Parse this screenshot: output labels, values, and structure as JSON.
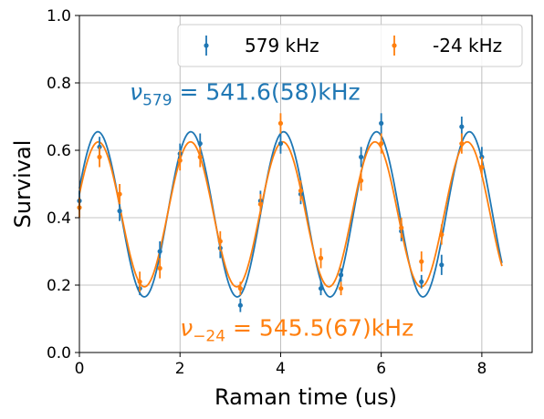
{
  "chart_data": {
    "type": "scatter",
    "xlabel": "Raman time (us)",
    "ylabel": "Survival",
    "xlim": [
      0,
      9
    ],
    "ylim": [
      0,
      1.0
    ],
    "xticks": [
      "0",
      "2",
      "4",
      "6",
      "8"
    ],
    "yticks": [
      "0.0",
      "0.2",
      "0.4",
      "0.6",
      "0.8",
      "1.0"
    ],
    "grid": true,
    "legend_position": "top-right",
    "series": [
      {
        "name": "579 kHz",
        "color": "#1f77b4",
        "x": [
          0.0,
          0.4,
          0.8,
          1.2,
          1.6,
          2.0,
          2.4,
          2.8,
          3.2,
          3.6,
          4.0,
          4.4,
          4.8,
          5.2,
          5.6,
          6.0,
          6.4,
          6.8,
          7.2,
          7.6,
          8.0
        ],
        "y": [
          0.45,
          0.61,
          0.42,
          0.19,
          0.3,
          0.59,
          0.62,
          0.31,
          0.14,
          0.45,
          0.62,
          0.47,
          0.19,
          0.23,
          0.58,
          0.68,
          0.36,
          0.21,
          0.26,
          0.67,
          0.58
        ],
        "yerr": [
          0.03,
          0.03,
          0.03,
          0.02,
          0.03,
          0.03,
          0.03,
          0.03,
          0.02,
          0.03,
          0.03,
          0.03,
          0.02,
          0.02,
          0.03,
          0.03,
          0.03,
          0.02,
          0.03,
          0.03,
          0.03
        ],
        "fit": {
          "offset": 0.41,
          "amplitude": 0.245,
          "freq_mhz": 0.5416,
          "phase": 0.32
        }
      },
      {
        "name": "-24 kHz",
        "color": "#ff7f0e",
        "x": [
          0.0,
          0.4,
          0.8,
          1.2,
          1.6,
          2.0,
          2.4,
          2.8,
          3.2,
          3.6,
          4.0,
          4.4,
          4.8,
          5.2,
          5.6,
          6.0,
          6.4,
          6.8,
          7.2,
          7.6,
          8.0
        ],
        "y": [
          0.43,
          0.58,
          0.47,
          0.21,
          0.25,
          0.57,
          0.58,
          0.33,
          0.19,
          0.44,
          0.68,
          0.48,
          0.28,
          0.19,
          0.51,
          0.62,
          0.37,
          0.27,
          0.35,
          0.62,
          0.55
        ],
        "yerr": [
          0.03,
          0.03,
          0.03,
          0.03,
          0.03,
          0.03,
          0.03,
          0.03,
          0.02,
          0.03,
          0.03,
          0.03,
          0.03,
          0.02,
          0.03,
          0.03,
          0.03,
          0.03,
          0.03,
          0.03,
          0.03
        ],
        "fit": {
          "offset": 0.41,
          "amplitude": 0.215,
          "freq_mhz": 0.5455,
          "phase": 0.28
        }
      }
    ],
    "fit_x_range": [
      0,
      8.4
    ],
    "annotations": [
      {
        "label": "ν_579 = 541.6(58)kHz",
        "main": "ν",
        "sub": "579",
        "rest": " = 541.6(58)kHz",
        "color": "#1f77b4",
        "x": 1.0,
        "y": 0.75
      },
      {
        "label": "ν_-24 = 545.5(67)kHz",
        "main": "ν",
        "sub": "−24",
        "rest": " = 545.5(67)kHz",
        "color": "#ff7f0e",
        "x": 2.0,
        "y": 0.05
      }
    ]
  }
}
